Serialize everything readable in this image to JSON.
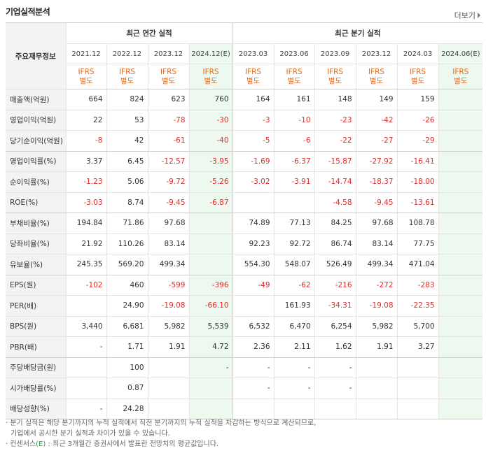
{
  "header": {
    "title": "기업실적분석",
    "more_label": "더보기"
  },
  "table": {
    "label_header": "주요재무정보",
    "group_annual": "최근 연간 실적",
    "group_quarter": "최근 분기 실적",
    "columns": [
      "2021.12",
      "2022.12",
      "2023.12",
      "2024.12(E)",
      "2023.03",
      "2023.06",
      "2023.09",
      "2023.12",
      "2024.03",
      "2024.06(E)"
    ],
    "basis_line1": "IFRS",
    "basis_line2": "별도",
    "rows": [
      {
        "label": "매출액(억원)",
        "values": [
          "664",
          "824",
          "623",
          "760",
          "164",
          "161",
          "148",
          "149",
          "159",
          ""
        ]
      },
      {
        "label": "영업이익(억원)",
        "values": [
          "22",
          "53",
          "-78",
          "-30",
          "-3",
          "-10",
          "-23",
          "-42",
          "-26",
          ""
        ]
      },
      {
        "label": "당기순이익(억원)",
        "values": [
          "-8",
          "42",
          "-61",
          "-40",
          "-5",
          "-6",
          "-22",
          "-27",
          "-29",
          ""
        ]
      },
      {
        "label": "영업이익률(%)",
        "values": [
          "3.37",
          "6.45",
          "-12.57",
          "-3.95",
          "-1.69",
          "-6.37",
          "-15.87",
          "-27.92",
          "-16.41",
          ""
        ]
      },
      {
        "label": "순이익률(%)",
        "values": [
          "-1.23",
          "5.06",
          "-9.72",
          "-5.26",
          "-3.02",
          "-3.91",
          "-14.74",
          "-18.37",
          "-18.00",
          ""
        ]
      },
      {
        "label": "ROE(%)",
        "values": [
          "-3.03",
          "8.74",
          "-9.45",
          "-6.87",
          "",
          "",
          "-4.58",
          "-9.45",
          "-13.61",
          ""
        ]
      },
      {
        "label": "부채비율(%)",
        "values": [
          "194.84",
          "71.86",
          "97.68",
          "",
          "74.89",
          "77.13",
          "84.25",
          "97.68",
          "108.78",
          ""
        ]
      },
      {
        "label": "당좌비율(%)",
        "values": [
          "21.92",
          "110.26",
          "83.14",
          "",
          "92.23",
          "92.72",
          "86.74",
          "83.14",
          "77.75",
          ""
        ]
      },
      {
        "label": "유보율(%)",
        "values": [
          "245.35",
          "569.20",
          "499.34",
          "",
          "554.30",
          "548.07",
          "526.49",
          "499.34",
          "471.04",
          ""
        ]
      },
      {
        "label": "EPS(원)",
        "values": [
          "-102",
          "460",
          "-599",
          "-396",
          "-49",
          "-62",
          "-216",
          "-272",
          "-283",
          ""
        ]
      },
      {
        "label": "PER(배)",
        "values": [
          "",
          "24.90",
          "-19.08",
          "-66.10",
          "",
          "161.93",
          "-34.31",
          "-19.08",
          "-22.35",
          ""
        ]
      },
      {
        "label": "BPS(원)",
        "values": [
          "3,440",
          "6,681",
          "5,982",
          "5,539",
          "6,532",
          "6,470",
          "6,254",
          "5,982",
          "5,700",
          ""
        ]
      },
      {
        "label": "PBR(배)",
        "values": [
          "-",
          "1.71",
          "1.91",
          "4.72",
          "2.36",
          "2.11",
          "1.62",
          "1.91",
          "3.27",
          ""
        ]
      },
      {
        "label": "주당배당금(원)",
        "values": [
          "",
          "100",
          "",
          "-",
          "-",
          "-",
          "-",
          "",
          "",
          ""
        ]
      },
      {
        "label": "시가배당률(%)",
        "values": [
          "",
          "0.87",
          "",
          "",
          "-",
          "-",
          "-",
          "",
          "",
          ""
        ]
      },
      {
        "label": "배당성향(%)",
        "values": [
          "-",
          "24.28",
          "",
          "",
          "",
          "",
          "",
          "",
          "",
          ""
        ]
      }
    ]
  },
  "footnotes": {
    "note1_line1": "분기 실적은 해당 분기까지의 누적 실적에서 직전 분기까지의 누적 실적을 차감하는 방식으로 계산되므로,",
    "note1_line2": "기업에서 공시한 분기 실적과 차이가 있을 수 있습니다.",
    "note2_prefix": "컨센서스",
    "note2_e": "(E)",
    "note2_rest": ": 최근 3개월간 증권사에서 발표한 전망치의 평균값입니다."
  },
  "colors": {
    "negative": "#e32b2b",
    "ifrs": "#e36a1b",
    "estimate_bg": "#edf9ee",
    "label_bg": "#f3f3f3"
  }
}
